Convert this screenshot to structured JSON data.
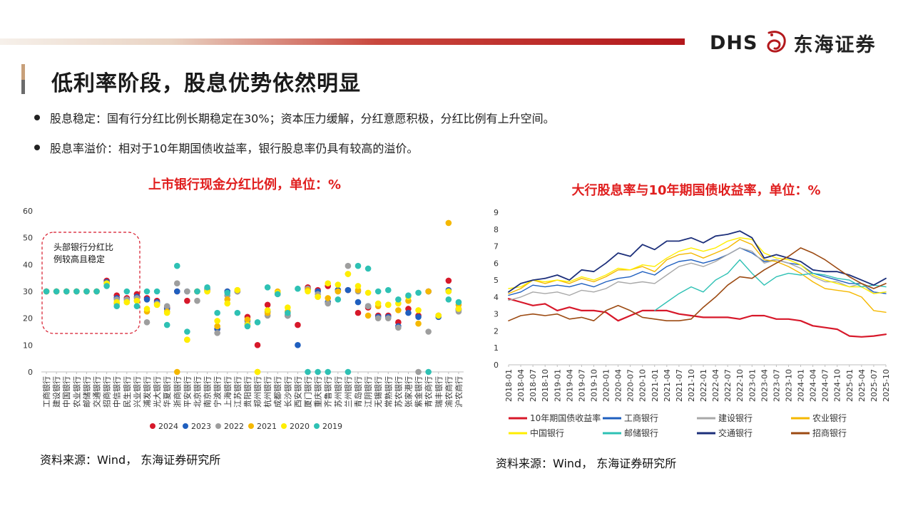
{
  "brand": {
    "latin": "DHS",
    "name": "东海证券"
  },
  "colors": {
    "accent_red": "#e01e1e"
  },
  "title": "低利率阶段，股息优势依然明显",
  "bullets": [
    "股息稳定：国有行分红比例长期稳定在30%；资本压力缓解，分红意愿积极，分红比例有上升空间。",
    "股息率溢价：相对于10年期国债收益率，银行股息率仍具有较高的溢价。"
  ],
  "left_source": "资料来源：Wind， 东海证券研究所",
  "right_source": "资料来源：Wind， 东海证券研究所",
  "chart_data": [
    {
      "type": "scatter",
      "title": "上市银行现金分红比例，单位：%",
      "annotation": "头部银行分红比例较高且稳定",
      "ylim": [
        0,
        60
      ],
      "yticks": [
        0,
        10,
        20,
        30,
        40,
        50,
        60
      ],
      "grid": false,
      "legend_position": "bottom",
      "categories": [
        "工商银行",
        "建设银行",
        "中国银行",
        "农业银行",
        "邮储银行",
        "交通银行",
        "招商银行",
        "中信银行",
        "民生银行",
        "兴业银行",
        "浦发银行",
        "光大银行",
        "华夏银行",
        "浙商银行",
        "平安银行",
        "北京银行",
        "南京银行",
        "宁波银行",
        "上海银行",
        "江苏银行",
        "贵阳银行",
        "郑州银行",
        "杭州银行",
        "成都银行",
        "长沙银行",
        "西安银行",
        "厦门银行",
        "重庆银行",
        "齐鲁银行",
        "苏州银行",
        "兰州银行",
        "青岛银行",
        "江阴银行",
        "无锡银行",
        "常熟银行",
        "苏农银行",
        "张家港行",
        "紫金银行",
        "青农商行",
        "瑞丰银行",
        "渝农商行",
        "沪农商行"
      ],
      "series": [
        {
          "name": "2024",
          "color": "#d7182a",
          "values": [
            30,
            30,
            30,
            30,
            30,
            30,
            34,
            28.5,
            27.5,
            29,
            27.5,
            26.5,
            24,
            30,
            26.5,
            30,
            30.5,
            16,
            30,
            30,
            20.5,
            10,
            25,
            29.5,
            21,
            17.5,
            31.5,
            30.5,
            32,
            30.5,
            30.5,
            22,
            24,
            21,
            21,
            18.5,
            23.5,
            21,
            30,
            21,
            34,
            23.5
          ]
        },
        {
          "name": "2023",
          "color": "#1f5fbf",
          "values": [
            30,
            30,
            30,
            30,
            30,
            30,
            33.5,
            27.5,
            27,
            28,
            27,
            26,
            23.5,
            30,
            30,
            30,
            31,
            16,
            30,
            30,
            19,
            null,
            22.5,
            29,
            21,
            10,
            31,
            30,
            26,
            30.5,
            30.5,
            26,
            24.5,
            20.5,
            20.5,
            17,
            22,
            20.5,
            30,
            20.5,
            30.5,
            23
          ]
        },
        {
          "name": "2022",
          "color": "#9e9e9e",
          "values": [
            30,
            30,
            30,
            30,
            30,
            30,
            33,
            27,
            27,
            27.5,
            18.5,
            25.5,
            24.5,
            33,
            30,
            26.5,
            30.5,
            14.5,
            28.5,
            30,
            18,
            null,
            21,
            29,
            21,
            null,
            31,
            29,
            25.5,
            30,
            39.5,
            30,
            24.5,
            20,
            20,
            16.5,
            null,
            null,
            15,
            21,
            30,
            22.5
          ]
        },
        {
          "name": "2021",
          "color": "#f5b800",
          "values": [
            30,
            30,
            30,
            30,
            30,
            30,
            33,
            25.5,
            26,
            26.5,
            22.5,
            25,
            22.5,
            null,
            12,
            30,
            30,
            17,
            27,
            30.5,
            19.5,
            null,
            22,
            30,
            22.5,
            null,
            30.5,
            28,
            27.5,
            30,
            36.5,
            30.5,
            21,
            24.5,
            25,
            23,
            26.5,
            18,
            30,
            21,
            55.5,
            25
          ]
        },
        {
          "name": "2020",
          "color": "#ffee00",
          "values": [
            30,
            30,
            30,
            30,
            30,
            30,
            33,
            26,
            26,
            26.5,
            23.5,
            25,
            22,
            null,
            12,
            30,
            30,
            19,
            25.5,
            30.5,
            17.5,
            null,
            23,
            29.5,
            24,
            null,
            30,
            28,
            33,
            32.5,
            36.5,
            32,
            29.5,
            25.5,
            25,
            25.5,
            28,
            23,
            null,
            21,
            30,
            23.5
          ]
        },
        {
          "name": "2019",
          "color": "#2ec1b4",
          "values": [
            30,
            30,
            30,
            30,
            30,
            30,
            32,
            24.5,
            30,
            24.5,
            30,
            30,
            17.5,
            39.5,
            15,
            30,
            31.5,
            22,
            29.5,
            22,
            17,
            18.5,
            31.5,
            29,
            22,
            31,
            null,
            null,
            null,
            27,
            null,
            39.5,
            38.5,
            30,
            30.5,
            27,
            28.5,
            29.5,
            null,
            null,
            27,
            26
          ]
        }
      ],
      "zero_points": [
        {
          "series": "2021",
          "category": "浙商银行"
        },
        {
          "series": "2020",
          "category": "郑州银行"
        },
        {
          "series": "2021",
          "category": "郑州银行"
        },
        {
          "series": "2019",
          "category": "厦门银行"
        },
        {
          "series": "2019",
          "category": "重庆银行"
        },
        {
          "series": "2019",
          "category": "齐鲁银行"
        },
        {
          "series": "2019",
          "category": "兰州银行"
        },
        {
          "series": "2022",
          "category": "紫金银行"
        },
        {
          "series": "2019",
          "category": "青农商行"
        },
        {
          "series": "2019",
          "category": "渝农商行"
        }
      ]
    },
    {
      "type": "line",
      "title": "大行股息率与10年期国债收益率，单位：%",
      "ylim": [
        0,
        9
      ],
      "yticks": [
        0,
        1,
        2,
        3,
        4,
        5,
        6,
        7,
        8,
        9
      ],
      "grid": false,
      "legend_position": "bottom",
      "xlabels": [
        "2018-01",
        "2018-04",
        "2018-07",
        "2018-10",
        "2019-01",
        "2019-04",
        "2019-07",
        "2019-10",
        "2020-01",
        "2020-04",
        "2020-07",
        "2020-10",
        "2021-01",
        "2021-04",
        "2021-07",
        "2021-10",
        "2022-01",
        "2022-04",
        "2022-07",
        "2022-10",
        "2023-01",
        "2023-04",
        "2023-07",
        "2023-10",
        "2024-01",
        "2024-04",
        "2024-07",
        "2024-10",
        "2025-01",
        "2025-04",
        "2025-07",
        "2025-10"
      ],
      "series": [
        {
          "name": "10年期国债收益率",
          "color": "#d7182a",
          "width": 2.2,
          "values": [
            3.9,
            3.7,
            3.5,
            3.6,
            3.2,
            3.4,
            3.2,
            3.2,
            3.1,
            2.6,
            2.9,
            3.2,
            3.2,
            3.2,
            3.0,
            2.9,
            2.8,
            2.8,
            2.8,
            2.7,
            2.9,
            2.9,
            2.7,
            2.7,
            2.6,
            2.3,
            2.2,
            2.1,
            1.7,
            1.65,
            1.7,
            1.8
          ]
        },
        {
          "name": "工商银行",
          "color": "#1f5fbf",
          "width": 1.4,
          "values": [
            4.1,
            4.3,
            4.7,
            4.6,
            4.7,
            4.6,
            4.8,
            4.6,
            4.9,
            5.1,
            5.2,
            5.5,
            5.3,
            5.8,
            6.1,
            6.2,
            6.0,
            6.2,
            6.5,
            6.9,
            6.6,
            6.1,
            6.2,
            6.0,
            5.9,
            5.4,
            5.2,
            5.0,
            4.8,
            4.8,
            4.3,
            4.2
          ]
        },
        {
          "name": "建设银行",
          "color": "#a8a8a8",
          "width": 1.4,
          "values": [
            3.8,
            4.0,
            4.3,
            4.2,
            4.3,
            4.1,
            4.4,
            4.3,
            4.5,
            4.9,
            4.8,
            4.9,
            4.8,
            5.3,
            5.8,
            6.0,
            5.8,
            6.1,
            6.5,
            6.9,
            6.7,
            6.0,
            6.2,
            6.0,
            5.7,
            5.2,
            4.9,
            4.9,
            4.6,
            4.8,
            4.2,
            4.3
          ]
        },
        {
          "name": "农业银行",
          "color": "#f5b800",
          "width": 1.4,
          "values": [
            4.2,
            4.5,
            5.0,
            4.8,
            5.0,
            4.8,
            5.1,
            4.9,
            5.2,
            5.6,
            5.6,
            5.8,
            5.5,
            6.2,
            6.5,
            6.6,
            6.3,
            6.6,
            6.9,
            7.4,
            7.1,
            6.2,
            6.1,
            5.8,
            5.4,
            4.9,
            4.5,
            4.4,
            4.3,
            4.0,
            3.2,
            3.1
          ]
        },
        {
          "name": "中国银行",
          "color": "#ffee00",
          "width": 1.4,
          "values": [
            4.5,
            4.6,
            5.0,
            4.9,
            5.0,
            4.9,
            5.2,
            5.0,
            5.3,
            5.7,
            5.6,
            5.9,
            5.8,
            6.3,
            6.7,
            6.9,
            6.7,
            6.9,
            7.3,
            7.5,
            7.4,
            6.6,
            6.3,
            6.2,
            5.9,
            5.3,
            5.0,
            4.8,
            4.6,
            4.6,
            4.2,
            4.3
          ]
        },
        {
          "name": "邮储银行",
          "color": "#2ec1b4",
          "width": 1.4,
          "values": [
            null,
            null,
            null,
            null,
            null,
            null,
            null,
            null,
            null,
            null,
            null,
            null,
            3.2,
            3.7,
            4.2,
            4.6,
            4.3,
            5.0,
            5.4,
            6.2,
            5.4,
            4.7,
            5.2,
            5.4,
            5.3,
            5.4,
            5.3,
            5.1,
            5.0,
            4.6,
            4.7,
            4.6
          ]
        },
        {
          "name": "交通银行",
          "color": "#1c2f7a",
          "width": 1.8,
          "values": [
            4.3,
            4.8,
            5.0,
            5.1,
            5.3,
            5.0,
            5.6,
            5.5,
            6.0,
            6.6,
            6.4,
            7.1,
            6.8,
            7.3,
            7.3,
            7.5,
            7.2,
            7.6,
            7.7,
            7.9,
            7.5,
            6.3,
            6.5,
            6.3,
            6.1,
            5.6,
            5.5,
            5.5,
            5.3,
            5.0,
            4.7,
            5.1
          ]
        },
        {
          "name": "招商银行",
          "color": "#9c4a12",
          "width": 1.6,
          "values": [
            2.6,
            2.9,
            3.0,
            2.9,
            3.0,
            2.7,
            2.8,
            2.6,
            3.2,
            3.5,
            3.2,
            2.8,
            2.7,
            2.6,
            2.6,
            2.7,
            3.4,
            4.0,
            4.7,
            5.2,
            5.1,
            5.6,
            6.0,
            6.4,
            6.9,
            6.6,
            6.2,
            5.7,
            5.2,
            4.8,
            4.5,
            4.8
          ]
        }
      ]
    }
  ]
}
